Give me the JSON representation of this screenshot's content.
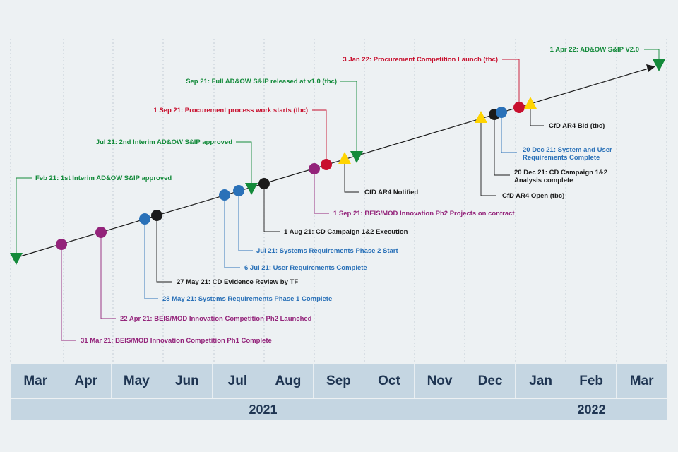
{
  "months": [
    "Mar",
    "Apr",
    "May",
    "Jun",
    "Jul",
    "Aug",
    "Sep",
    "Oct",
    "Nov",
    "Dec",
    "Jan",
    "Feb",
    "Mar"
  ],
  "years": [
    "2021",
    "2022"
  ],
  "colors": {
    "green": "#138a3a",
    "red": "#c8102e",
    "purple": "#93237a",
    "blue": "#2a71b8",
    "black": "#1b1b1b",
    "yellow": "#ffd400",
    "grid": "#b9c4cc",
    "axis_band": "#c5d6e2",
    "axis_text": "#1f3552"
  },
  "events": [
    {
      "name": "event-feb21-interim",
      "color": "green",
      "marker": "triangle-down",
      "lines": [
        "Feb 21: 1st Interim AD&OW S&IP approved"
      ]
    },
    {
      "name": "event-31mar21-ph1",
      "color": "purple",
      "marker": "circle",
      "lines": [
        "31 Mar 21: BEIS/MOD Innovation Competition Ph1 Complete"
      ]
    },
    {
      "name": "event-22apr21-ph2",
      "color": "purple",
      "marker": "circle",
      "lines": [
        "22 Apr 21: BEIS/MOD Innovation Competition Ph2 Launched"
      ]
    },
    {
      "name": "event-28may21-sysreq1",
      "color": "blue",
      "marker": "circle",
      "lines": [
        "28 May 21: Systems Requirements Phase 1 Complete"
      ]
    },
    {
      "name": "event-27may21-cd-review",
      "color": "black",
      "marker": "circle",
      "lines": [
        "27 May 21: CD Evidence Review by TF"
      ]
    },
    {
      "name": "event-6jul21-userreq",
      "color": "blue",
      "marker": "circle",
      "lines": [
        "6 Jul 21: User Requirements Complete"
      ]
    },
    {
      "name": "event-jul21-sysreq2",
      "color": "blue",
      "marker": "circle",
      "lines": [
        "Jul 21: Systems Requirements Phase 2 Start"
      ]
    },
    {
      "name": "event-jul21-interim2",
      "color": "green",
      "marker": "triangle-down",
      "lines": [
        "Jul 21: 2nd Interim AD&OW S&IP approved"
      ]
    },
    {
      "name": "event-1aug21-cd-exec",
      "color": "black",
      "marker": "circle",
      "lines": [
        "1 Aug 21: CD Campaign 1&2 Execution"
      ]
    },
    {
      "name": "event-1sep21-ph2-contract",
      "color": "purple",
      "marker": "circle",
      "lines": [
        "1 Sep 21: BEIS/MOD Innovation Ph2 Projects on contract"
      ]
    },
    {
      "name": "event-1sep21-procurement",
      "color": "red",
      "marker": "circle",
      "lines": [
        "1 Sep 21: Procurement process work starts (tbc)"
      ]
    },
    {
      "name": "event-cfd-ar4-notified",
      "color": "black",
      "marker": "triangle-up",
      "lines": [
        "CfD AR4 Notified"
      ]
    },
    {
      "name": "event-sep21-full-release",
      "color": "green",
      "marker": "triangle-down",
      "lines": [
        "Sep 21: Full AD&OW S&IP released at v1.0 (tbc)"
      ]
    },
    {
      "name": "event-cfd-ar4-open",
      "color": "black",
      "marker": "triangle-up",
      "lines": [
        "CfD AR4 Open (tbc)"
      ]
    },
    {
      "name": "event-20dec21-cd-analysis",
      "color": "black",
      "marker": "circle",
      "lines": [
        "20 Dec 21: CD Campaign 1&2",
        "Analysis complete"
      ]
    },
    {
      "name": "event-20dec21-sys-user",
      "color": "blue",
      "marker": "circle",
      "lines": [
        "20 Dec 21: System and User",
        "Requirements Complete"
      ]
    },
    {
      "name": "event-3jan22-procurement-launch",
      "color": "red",
      "marker": "circle",
      "lines": [
        "3 Jan 22: Procurement Competition Launch (tbc)"
      ]
    },
    {
      "name": "event-cfd-ar4-bid",
      "color": "black",
      "marker": "triangle-up",
      "lines": [
        "CfD AR4 Bid (tbc)"
      ]
    },
    {
      "name": "event-1apr22-v2",
      "color": "green",
      "marker": "triangle-down",
      "lines": [
        "1 Apr 22: AD&OW S&IP V2.0"
      ]
    }
  ]
}
